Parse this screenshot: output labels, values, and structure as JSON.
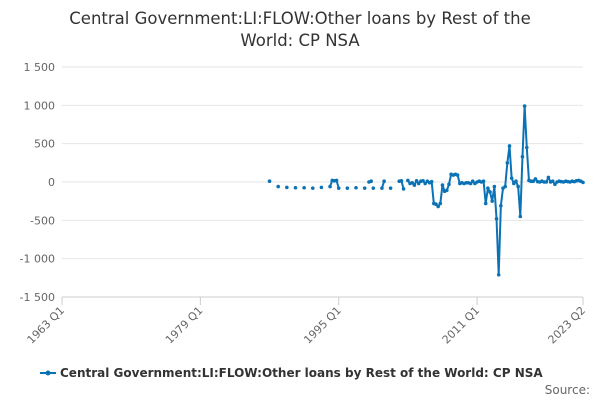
{
  "chart_data": {
    "type": "line",
    "title_lines": [
      "Central Government:LI:FLOW:Other loans by Rest of the",
      "World: CP NSA"
    ],
    "xlabel": "",
    "ylabel": "",
    "x_ticks": [
      "1963 Q1",
      "1979 Q1",
      "1995 Q1",
      "2011 Q1",
      "2023 Q2"
    ],
    "y_ticks": [
      "1 500",
      "1 000",
      "500",
      "0",
      "-500",
      "-1 000",
      "-1 500"
    ],
    "ylim": [
      -1500,
      1500
    ],
    "xlim": [
      1963.0,
      2023.25
    ],
    "grid": true,
    "legend_position": "bottom",
    "source_label": "Source:",
    "color": "#0a72b5",
    "series": [
      {
        "name": "Central Government:LI:FLOW:Other loans by Rest of the World: CP NSA",
        "segments": [
          [
            [
              1987.0,
              10
            ]
          ],
          [
            [
              1988.0,
              -60
            ]
          ],
          [
            [
              1989.0,
              -70
            ]
          ],
          [
            [
              1990.0,
              -75
            ]
          ],
          [
            [
              1991.0,
              -75
            ]
          ],
          [
            [
              1992.0,
              -80
            ]
          ],
          [
            [
              1993.0,
              -70
            ]
          ],
          [
            [
              1994.0,
              -60
            ],
            [
              1994.25,
              20
            ],
            [
              1994.5,
              15
            ],
            [
              1994.75,
              20
            ],
            [
              1995.0,
              -80
            ]
          ],
          [
            [
              1996.0,
              -80
            ]
          ],
          [
            [
              1997.0,
              -75
            ]
          ],
          [
            [
              1998.0,
              -80
            ]
          ],
          [
            [
              1998.5,
              0
            ],
            [
              1998.75,
              10
            ]
          ],
          [
            [
              1999.0,
              -80
            ]
          ],
          [
            [
              2000.0,
              -80
            ],
            [
              2000.25,
              10
            ]
          ],
          [
            [
              2001.0,
              -80
            ]
          ],
          [
            [
              2002.0,
              10
            ],
            [
              2002.25,
              15
            ],
            [
              2002.5,
              -90
            ]
          ],
          [
            [
              2003.0,
              20
            ],
            [
              2003.25,
              -20
            ],
            [
              2003.5,
              -10
            ],
            [
              2003.75,
              -40
            ],
            [
              2004.0,
              15
            ],
            [
              2004.25,
              -20
            ],
            [
              2004.5,
              10
            ],
            [
              2004.75,
              15
            ],
            [
              2005.0,
              -20
            ],
            [
              2005.25,
              10
            ],
            [
              2005.5,
              -10
            ],
            [
              2005.75,
              5
            ],
            [
              2006.0,
              -280
            ],
            [
              2006.25,
              -290
            ],
            [
              2006.5,
              -320
            ],
            [
              2006.75,
              -280
            ],
            [
              2007.0,
              -40
            ],
            [
              2007.25,
              -120
            ],
            [
              2007.5,
              -110
            ],
            [
              2007.75,
              -30
            ],
            [
              2008.0,
              100
            ],
            [
              2008.25,
              90
            ],
            [
              2008.5,
              100
            ],
            [
              2008.75,
              90
            ],
            [
              2009.0,
              -20
            ],
            [
              2009.25,
              -10
            ],
            [
              2009.5,
              -20
            ],
            [
              2009.75,
              -10
            ],
            [
              2010.0,
              -10
            ],
            [
              2010.25,
              -20
            ],
            [
              2010.5,
              10
            ],
            [
              2010.75,
              -20
            ],
            [
              2011.0,
              0
            ],
            [
              2011.25,
              10
            ],
            [
              2011.5,
              0
            ],
            [
              2011.75,
              10
            ],
            [
              2012.0,
              -280
            ],
            [
              2012.25,
              -80
            ],
            [
              2012.5,
              -130
            ],
            [
              2012.75,
              -250
            ],
            [
              2013.0,
              -60
            ],
            [
              2013.25,
              -480
            ],
            [
              2013.5,
              -1210
            ],
            [
              2013.75,
              -310
            ],
            [
              2014.0,
              -80
            ],
            [
              2014.25,
              -60
            ],
            [
              2014.5,
              250
            ],
            [
              2014.75,
              470
            ],
            [
              2015.0,
              50
            ],
            [
              2015.25,
              -20
            ],
            [
              2015.5,
              10
            ],
            [
              2015.75,
              -60
            ],
            [
              2016.0,
              -450
            ],
            [
              2016.25,
              330
            ],
            [
              2016.5,
              990
            ],
            [
              2016.75,
              450
            ],
            [
              2017.0,
              20
            ],
            [
              2017.25,
              10
            ],
            [
              2017.5,
              10
            ],
            [
              2017.75,
              40
            ],
            [
              2018.0,
              5
            ],
            [
              2018.25,
              0
            ],
            [
              2018.5,
              10
            ],
            [
              2018.75,
              0
            ],
            [
              2019.0,
              0
            ],
            [
              2019.25,
              60
            ],
            [
              2019.5,
              0
            ],
            [
              2019.75,
              10
            ],
            [
              2020.0,
              -30
            ],
            [
              2020.25,
              0
            ],
            [
              2020.5,
              10
            ],
            [
              2020.75,
              5
            ],
            [
              2021.0,
              0
            ],
            [
              2021.25,
              10
            ],
            [
              2021.5,
              5
            ],
            [
              2021.75,
              0
            ],
            [
              2022.0,
              10
            ],
            [
              2022.25,
              5
            ],
            [
              2022.5,
              15
            ],
            [
              2022.75,
              20
            ],
            [
              2023.0,
              10
            ],
            [
              2023.25,
              -5
            ]
          ]
        ]
      }
    ]
  }
}
